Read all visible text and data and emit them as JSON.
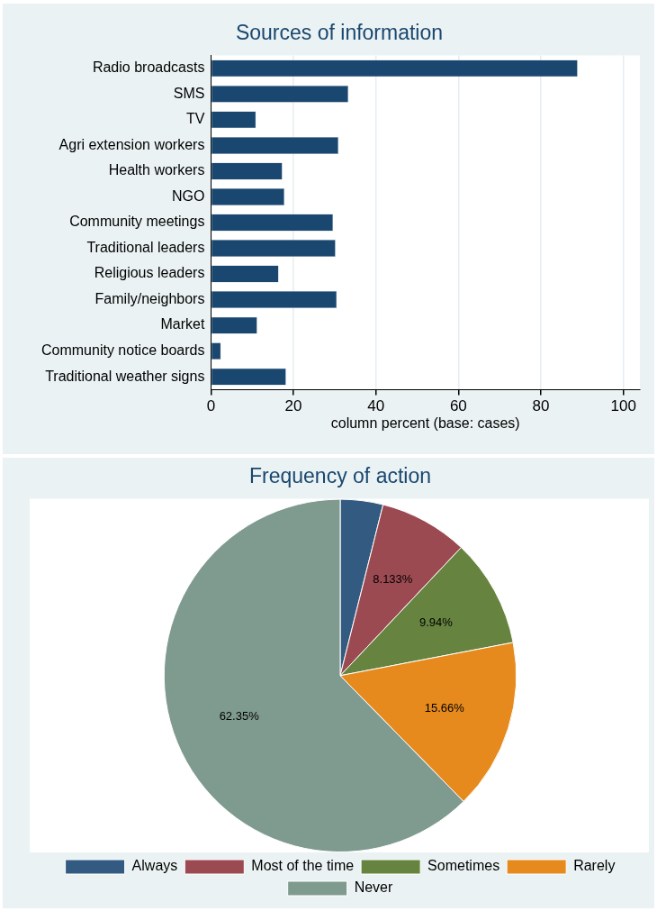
{
  "chart_data": [
    {
      "type": "bar",
      "orientation": "horizontal",
      "title": "Sources of information",
      "xlabel": "column percent (base: cases)",
      "categories": [
        "Radio broadcasts",
        "SMS",
        "TV",
        "Agri extension workers",
        "Health workers",
        "NGO",
        "Community meetings",
        "Traditional leaders",
        "Religious leaders",
        "Family/neighbors",
        "Market",
        "Community notice boards",
        "Traditional weather signs"
      ],
      "values": [
        88.9,
        33.3,
        10.9,
        30.9,
        17.3,
        17.8,
        29.6,
        30.2,
        16.4,
        30.5,
        11.2,
        2.4,
        18.2
      ],
      "color": "#1a476f",
      "xlim": [
        0,
        104
      ],
      "xticks": [
        0,
        20,
        40,
        60,
        80,
        100
      ],
      "grid": "x",
      "legend": false
    },
    {
      "type": "pie",
      "title": "Frequency of action",
      "categories": [
        "Always",
        "Most of the time",
        "Sometimes",
        "Rarely",
        "Never"
      ],
      "values": [
        3.917,
        8.133,
        9.94,
        15.66,
        62.35
      ],
      "value_labels": [
        null,
        "8.133%",
        "9.94%",
        "15.66%",
        "62.35%"
      ],
      "colors": [
        "#335b82",
        "#9c4a52",
        "#66843f",
        "#e68a1e",
        "#7f9a8f"
      ],
      "legend": "bottom"
    }
  ]
}
